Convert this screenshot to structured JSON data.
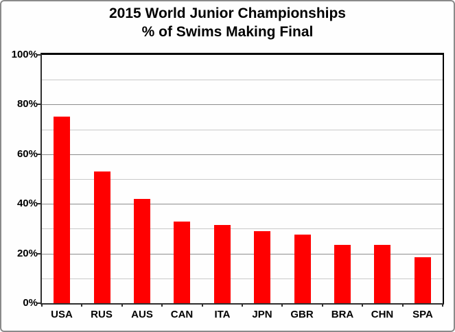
{
  "title": {
    "line1": "2015 World Junior Championships",
    "line2": "% of Swims Making Final"
  },
  "chart_data": {
    "type": "bar",
    "title": "2015 World Junior Championships",
    "subtitle": "% of Swims Making Final",
    "categories": [
      "USA",
      "RUS",
      "AUS",
      "CAN",
      "ITA",
      "JPN",
      "GBR",
      "BRA",
      "CHN",
      "SPA"
    ],
    "values": [
      75,
      53,
      42,
      33,
      31.5,
      29,
      27.5,
      23.5,
      23.5,
      18.5
    ],
    "xlabel": "",
    "ylabel": "",
    "ylim": [
      0,
      100
    ],
    "ytick_step": 20,
    "minor_grid_step": 10,
    "ytick_labels": [
      "0%",
      "20%",
      "40%",
      "60%",
      "80%",
      "100%"
    ],
    "grid": "horizontal, minor every 10% light gray, major every 20% darker gray",
    "legend_position": "none",
    "bar_color": "#ff0000",
    "colors": {
      "bar": "#ff0000",
      "minor_grid": "#c9c9c9",
      "major_grid": "#8c8c8c",
      "axis": "#2e2e2e",
      "frame": "#000000",
      "outer_border": "#8a8a8a",
      "text": "#000000",
      "background": "#fefefe"
    }
  }
}
